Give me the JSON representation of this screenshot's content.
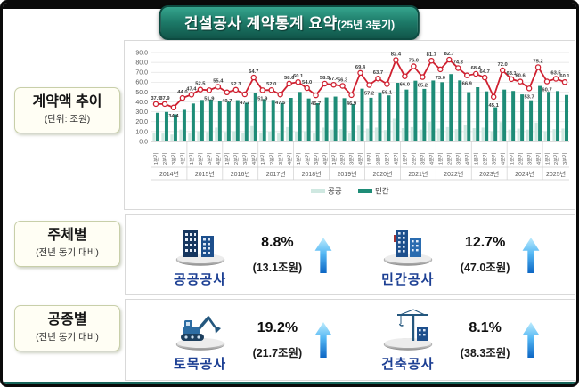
{
  "title": {
    "text": "건설공사 계약통계 요약",
    "suffix": "(25년 3분기)"
  },
  "colors": {
    "title_bg": "#1d7a68",
    "public_bar": "#cfe8e1",
    "private_bar": "#1e8c77",
    "line": "#cf2030",
    "name_blue": "#1c3f93",
    "arrow_blue": "#1a8ae0"
  },
  "chart_data": {
    "type": "bar+line",
    "title": "계약액 추이",
    "unit": "(단위: 조원)",
    "ylim": [
      0,
      90
    ],
    "ytick_step": 10,
    "quarter_labels": [
      "1분기",
      "2분기",
      "3분기",
      "4분기"
    ],
    "years": [
      {
        "label": "2014년",
        "quarters": 4
      },
      {
        "label": "2015년",
        "quarters": 4
      },
      {
        "label": "2016년",
        "quarters": 4
      },
      {
        "label": "2017년",
        "quarters": 4
      },
      {
        "label": "2018년",
        "quarters": 4
      },
      {
        "label": "2019년",
        "quarters": 4
      },
      {
        "label": "2020년",
        "quarters": 4
      },
      {
        "label": "2021년",
        "quarters": 4
      },
      {
        "label": "2022년",
        "quarters": 4
      },
      {
        "label": "2023년",
        "quarters": 4
      },
      {
        "label": "2024년",
        "quarters": 4
      },
      {
        "label": "2025년",
        "quarters": 3
      }
    ],
    "series": [
      {
        "name": "공공",
        "type": "bar",
        "color": "#cfe8e1",
        "values": [
          8.9,
          8.0,
          7.0,
          12.0,
          9.0,
          10.5,
          9.5,
          14.0,
          9.5,
          10.5,
          8.5,
          15.5,
          9.0,
          10.0,
          8.5,
          14.5,
          10.0,
          10.5,
          8.0,
          14.0,
          12.0,
          12.5,
          9.0,
          16.0,
          13.0,
          14.0,
          11.5,
          23.0,
          13.5,
          14.5,
          12.0,
          20.0,
          13.0,
          14.5,
          12.5,
          17.0,
          13.5,
          14.0,
          10.5,
          19.5,
          12.0,
          13.0,
          12.0,
          19.0,
          10.5,
          12.5,
          13.1
        ]
      },
      {
        "name": "민간",
        "type": "bar",
        "color": "#1e8c77",
        "values": [
          29.0,
          29.9,
          27.4,
          32.0,
          38.4,
          42.0,
          42.4,
          41.4,
          40.2,
          41.8,
          39.2,
          49.2,
          42.9,
          42.0,
          39.0,
          44.1,
          50.1,
          43.5,
          38.7,
          44.5,
          45.4,
          43.8,
          37.9,
          53.4,
          44.2,
          49.7,
          46.6,
          59.4,
          52.5,
          61.5,
          53.2,
          61.7,
          60.0,
          68.2,
          61.8,
          49.9,
          54.9,
          50.7,
          34.6,
          52.5,
          51.1,
          47.6,
          41.7,
          56.2,
          50.2,
          51.0,
          47.0
        ]
      },
      {
        "name": "계약액",
        "type": "line",
        "color": "#cf2030",
        "labels_shown": true,
        "values": [
          37.9,
          37.9,
          34.4,
          44.0,
          47.4,
          52.5,
          51.9,
          55.4,
          49.7,
          52.3,
          47.7,
          64.7,
          51.9,
          52.0,
          47.5,
          58.6,
          60.1,
          54.0,
          46.7,
          58.5,
          57.4,
          56.3,
          46.9,
          69.4,
          57.2,
          63.7,
          58.1,
          82.4,
          66.0,
          76.0,
          65.2,
          81.7,
          73.0,
          82.7,
          74.3,
          66.9,
          68.4,
          64.7,
          45.1,
          72.0,
          63.1,
          60.6,
          53.7,
          75.2,
          60.7,
          63.5,
          60.1
        ]
      }
    ],
    "legend": [
      "공공",
      "민간"
    ],
    "legend_position": "bottom"
  },
  "panels": {
    "trend": {
      "label": "계약액 추이",
      "sub": "(단위: 조원)"
    },
    "subject": {
      "label": "주체별",
      "sub": "(전년 동기 대비)",
      "items": [
        {
          "name": "공공공사",
          "pct": "8.8%",
          "amount": "(13.1조원)",
          "direction": "up",
          "icon": "public-buildings-icon"
        },
        {
          "name": "민간공사",
          "pct": "12.7%",
          "amount": "(47.0조원)",
          "direction": "up",
          "icon": "private-buildings-icon"
        }
      ]
    },
    "type": {
      "label": "공종별",
      "sub": "(전년 동기 대비)",
      "items": [
        {
          "name": "토목공사",
          "pct": "19.2%",
          "amount": "(21.7조원)",
          "direction": "up",
          "icon": "excavator-icon"
        },
        {
          "name": "건축공사",
          "pct": "8.1%",
          "amount": "(38.3조원)",
          "direction": "up",
          "icon": "tower-crane-icon"
        }
      ]
    }
  }
}
